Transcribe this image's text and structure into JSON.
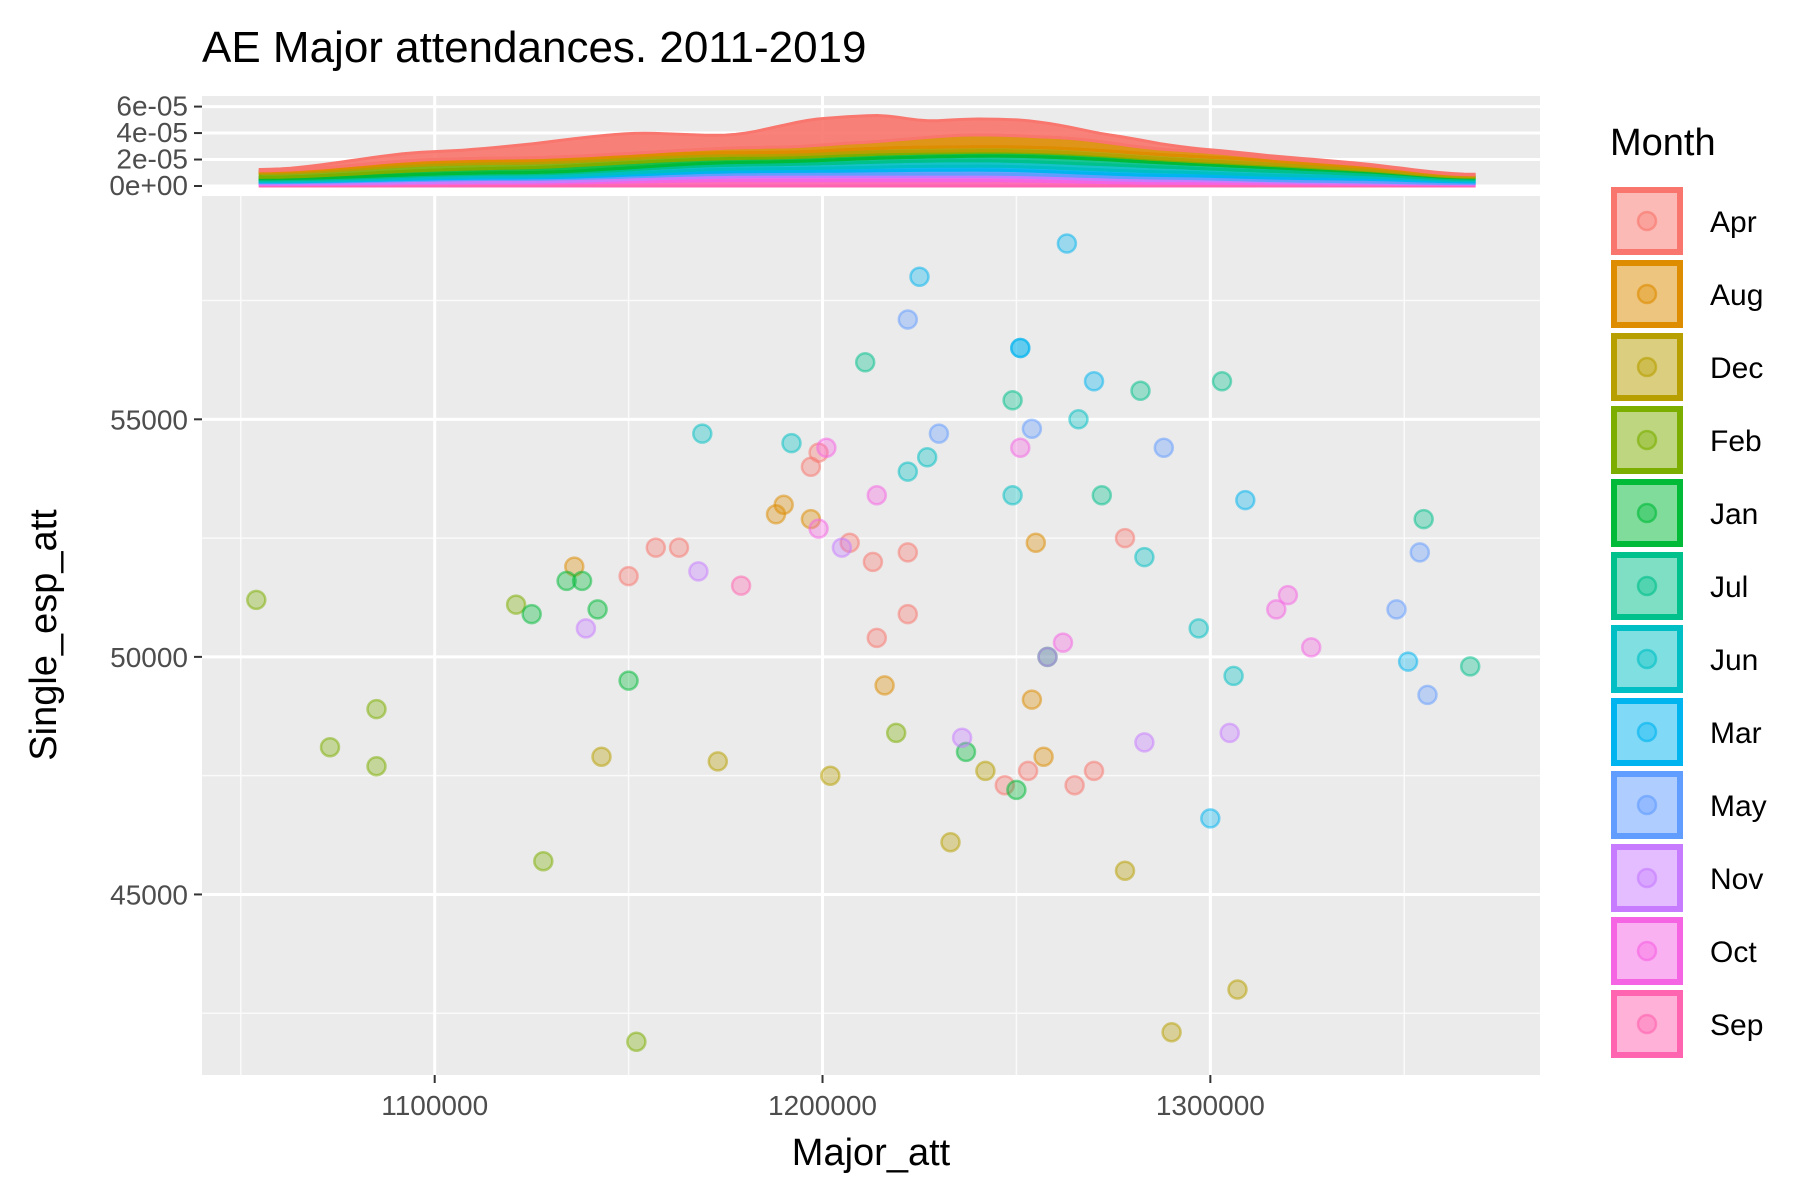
{
  "chart_data": {
    "type": "scatter",
    "title": "AE Major attendances. 2011-2019",
    "xlabel": "Major_att",
    "ylabel": "Single_esp_att",
    "xlim": [
      1040000,
      1385000
    ],
    "ylim": [
      41200,
      59700
    ],
    "x_ticks": [
      1100000,
      1200000,
      1300000
    ],
    "x_tick_labels": [
      "1100000",
      "1200000",
      "1300000"
    ],
    "y_ticks": [
      45000,
      50000,
      55000
    ],
    "y_tick_labels": [
      "45000",
      "50000",
      "55000"
    ],
    "grid": true,
    "legend": {
      "title": "Month",
      "position": "right"
    },
    "marginal_density": {
      "axis": "x",
      "y_ticks": [
        0,
        2e-05,
        4e-05,
        6e-05
      ],
      "y_tick_labels": [
        "0e+00",
        "2e-05",
        "4e-05",
        "6e-05"
      ],
      "ylim": [
        0,
        6.8e-05
      ],
      "stack_order": [
        "Sep",
        "Oct",
        "Nov",
        "May",
        "Mar",
        "Jun",
        "Jul",
        "Jan",
        "Feb",
        "Dec",
        "Aug",
        "Apr"
      ]
    },
    "series": [
      {
        "name": "Apr",
        "color": "#F8766D",
        "points": [
          [
            1150000,
            51700
          ],
          [
            1157000,
            52300
          ],
          [
            1163000,
            52300
          ],
          [
            1197000,
            54000
          ],
          [
            1199000,
            54300
          ],
          [
            1207000,
            52400
          ],
          [
            1214000,
            50400
          ],
          [
            1213000,
            52000
          ],
          [
            1222000,
            52200
          ],
          [
            1222000,
            50900
          ],
          [
            1247000,
            47300
          ],
          [
            1253000,
            47600
          ],
          [
            1265000,
            47300
          ],
          [
            1270000,
            47600
          ],
          [
            1278000,
            52500
          ]
        ],
        "density": [
          [
            1055000,
            1e-06
          ],
          [
            1100000,
            6e-06
          ],
          [
            1150000,
            1.5e-05
          ],
          [
            1175000,
            1e-05
          ],
          [
            1200000,
            2e-05
          ],
          [
            1212000,
            2e-05
          ],
          [
            1230000,
            1.2e-05
          ],
          [
            1250000,
            1.2e-05
          ],
          [
            1275000,
            6e-06
          ],
          [
            1300000,
            2e-06
          ],
          [
            1368000,
            4e-07
          ]
        ]
      },
      {
        "name": "Aug",
        "color": "#DE8C00",
        "points": [
          [
            1136000,
            51900
          ],
          [
            1188000,
            53000
          ],
          [
            1190000,
            53200
          ],
          [
            1197000,
            52900
          ],
          [
            1255000,
            52400
          ],
          [
            1216000,
            49400
          ],
          [
            1254000,
            49100
          ],
          [
            1257000,
            47900
          ]
        ],
        "density": [
          [
            1055000,
            1e-06
          ],
          [
            1100000,
            2e-06
          ],
          [
            1150000,
            2e-06
          ],
          [
            1190000,
            4e-06
          ],
          [
            1210000,
            5e-06
          ],
          [
            1240000,
            9e-06
          ],
          [
            1260000,
            8e-06
          ],
          [
            1290000,
            4e-06
          ],
          [
            1320000,
            2e-06
          ],
          [
            1368000,
            5e-07
          ]
        ]
      },
      {
        "name": "Dec",
        "color": "#B79F00",
        "points": [
          [
            1143000,
            47900
          ],
          [
            1173000,
            47800
          ],
          [
            1202000,
            47500
          ],
          [
            1233000,
            46100
          ],
          [
            1242000,
            47600
          ],
          [
            1278000,
            45500
          ],
          [
            1290000,
            42100
          ],
          [
            1307000,
            43000
          ]
        ],
        "density": [
          [
            1055000,
            1e-06
          ],
          [
            1100000,
            2e-06
          ],
          [
            1150000,
            2e-06
          ],
          [
            1190000,
            2e-06
          ],
          [
            1230000,
            3e-06
          ],
          [
            1260000,
            3e-06
          ],
          [
            1300000,
            3e-06
          ],
          [
            1330000,
            2e-06
          ],
          [
            1368000,
            1e-06
          ]
        ]
      },
      {
        "name": "Feb",
        "color": "#7CAE00",
        "points": [
          [
            1054000,
            51200
          ],
          [
            1073000,
            48100
          ],
          [
            1085000,
            48900
          ],
          [
            1085000,
            47700
          ],
          [
            1121000,
            51100
          ],
          [
            1128000,
            45700
          ],
          [
            1152000,
            41900
          ],
          [
            1219000,
            48400
          ]
        ],
        "density": [
          [
            1055000,
            3e-06
          ],
          [
            1100000,
            4e-06
          ],
          [
            1150000,
            3e-06
          ],
          [
            1200000,
            2e-06
          ],
          [
            1250000,
            1e-06
          ],
          [
            1300000,
            1e-06
          ],
          [
            1368000,
            5e-07
          ]
        ]
      },
      {
        "name": "Jan",
        "color": "#00BA38",
        "points": [
          [
            1125000,
            50900
          ],
          [
            1134000,
            51600
          ],
          [
            1138000,
            51600
          ],
          [
            1142000,
            51000
          ],
          [
            1150000,
            49500
          ],
          [
            1237000,
            48000
          ],
          [
            1250000,
            47200
          ],
          [
            1258000,
            50000
          ]
        ],
        "density": [
          [
            1055000,
            1e-06
          ],
          [
            1100000,
            3e-06
          ],
          [
            1140000,
            4e-06
          ],
          [
            1180000,
            3e-06
          ],
          [
            1230000,
            3e-06
          ],
          [
            1260000,
            3e-06
          ],
          [
            1300000,
            2e-06
          ],
          [
            1368000,
            5e-07
          ]
        ]
      },
      {
        "name": "Jul",
        "color": "#00C08B",
        "points": [
          [
            1211000,
            56200
          ],
          [
            1249000,
            55400
          ],
          [
            1272000,
            53400
          ],
          [
            1282000,
            55600
          ],
          [
            1303000,
            55800
          ],
          [
            1355000,
            52900
          ],
          [
            1367000,
            49800
          ]
        ],
        "density": [
          [
            1055000,
            1e-06
          ],
          [
            1120000,
            1e-06
          ],
          [
            1180000,
            2e-06
          ],
          [
            1220000,
            3e-06
          ],
          [
            1260000,
            4e-06
          ],
          [
            1300000,
            3e-06
          ],
          [
            1340000,
            2e-06
          ],
          [
            1368000,
            1e-06
          ]
        ]
      },
      {
        "name": "Jun",
        "color": "#00BFC4",
        "points": [
          [
            1169000,
            54700
          ],
          [
            1192000,
            54500
          ],
          [
            1222000,
            53900
          ],
          [
            1227000,
            54200
          ],
          [
            1249000,
            53400
          ],
          [
            1266000,
            55000
          ],
          [
            1283000,
            52100
          ],
          [
            1297000,
            50600
          ],
          [
            1306000,
            49600
          ]
        ],
        "density": [
          [
            1055000,
            1e-06
          ],
          [
            1120000,
            2e-06
          ],
          [
            1180000,
            3e-06
          ],
          [
            1230000,
            4e-06
          ],
          [
            1270000,
            4e-06
          ],
          [
            1310000,
            3e-06
          ],
          [
            1368000,
            1e-06
          ]
        ]
      },
      {
        "name": "Mar",
        "color": "#00B4F0",
        "points": [
          [
            1225000,
            58000
          ],
          [
            1263000,
            58700
          ],
          [
            1251000,
            56500
          ],
          [
            1251000,
            56500
          ],
          [
            1270000,
            55800
          ],
          [
            1300000,
            46600
          ],
          [
            1309000,
            53300
          ],
          [
            1351000,
            49900
          ]
        ],
        "density": [
          [
            1055000,
            5e-07
          ],
          [
            1120000,
            1e-06
          ],
          [
            1180000,
            2e-06
          ],
          [
            1230000,
            3e-06
          ],
          [
            1270000,
            3e-06
          ],
          [
            1320000,
            2e-06
          ],
          [
            1368000,
            1e-06
          ]
        ]
      },
      {
        "name": "May",
        "color": "#619CFF",
        "points": [
          [
            1222000,
            57100
          ],
          [
            1230000,
            54700
          ],
          [
            1254000,
            54800
          ],
          [
            1288000,
            54400
          ],
          [
            1348000,
            51000
          ],
          [
            1354000,
            52200
          ],
          [
            1356000,
            49200
          ]
        ],
        "density": [
          [
            1055000,
            5e-07
          ],
          [
            1120000,
            1e-06
          ],
          [
            1190000,
            2e-06
          ],
          [
            1240000,
            3e-06
          ],
          [
            1290000,
            2e-06
          ],
          [
            1340000,
            2e-06
          ],
          [
            1368000,
            1e-06
          ]
        ]
      },
      {
        "name": "Nov",
        "color": "#C77CFF",
        "points": [
          [
            1139000,
            50600
          ],
          [
            1168000,
            51800
          ],
          [
            1205000,
            52300
          ],
          [
            1236000,
            48300
          ],
          [
            1258000,
            50000
          ],
          [
            1283000,
            48200
          ],
          [
            1305000,
            48400
          ]
        ],
        "density": [
          [
            1055000,
            1e-06
          ],
          [
            1120000,
            2e-06
          ],
          [
            1180000,
            2e-06
          ],
          [
            1230000,
            2e-06
          ],
          [
            1280000,
            2e-06
          ],
          [
            1320000,
            1e-06
          ],
          [
            1368000,
            5e-07
          ]
        ]
      },
      {
        "name": "Oct",
        "color": "#F564E3",
        "points": [
          [
            1199000,
            52700
          ],
          [
            1201000,
            54400
          ],
          [
            1214000,
            53400
          ],
          [
            1251000,
            54400
          ],
          [
            1262000,
            50300
          ],
          [
            1317000,
            51000
          ],
          [
            1320000,
            51300
          ],
          [
            1326000,
            50200
          ]
        ],
        "density": [
          [
            1055000,
            5e-07
          ],
          [
            1120000,
            1e-06
          ],
          [
            1190000,
            3e-06
          ],
          [
            1240000,
            3e-06
          ],
          [
            1290000,
            2e-06
          ],
          [
            1330000,
            1e-06
          ],
          [
            1368000,
            5e-07
          ]
        ]
      },
      {
        "name": "Sep",
        "color": "#FF64B0",
        "points": [
          [
            1179000,
            51500
          ]
        ],
        "density": [
          [
            1055000,
            1e-06
          ],
          [
            1120000,
            2e-06
          ],
          [
            1180000,
            4e-06
          ],
          [
            1240000,
            4e-06
          ],
          [
            1290000,
            2e-06
          ],
          [
            1368000,
            1e-06
          ]
        ]
      }
    ]
  }
}
